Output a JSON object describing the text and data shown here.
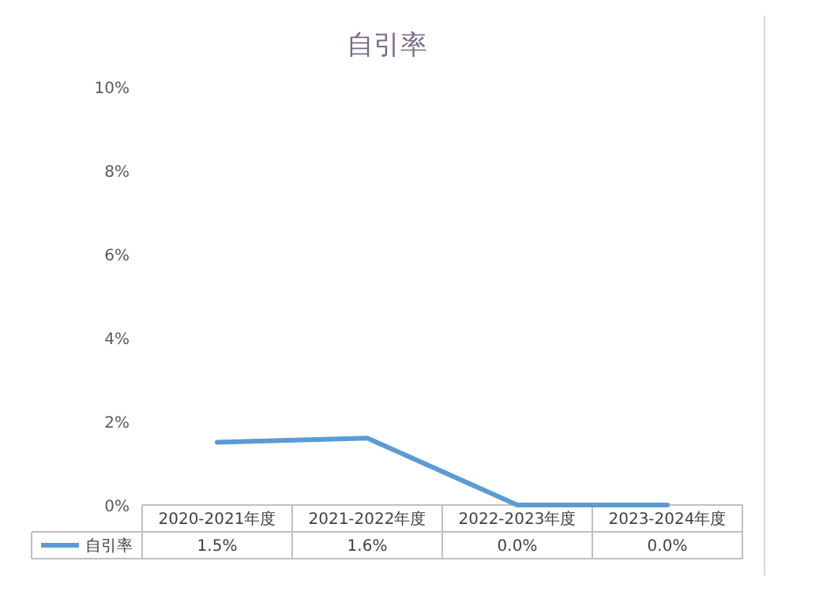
{
  "chart_data": {
    "type": "line",
    "title": "自引率",
    "categories": [
      "2020-2021年度",
      "2021-2022年度",
      "2022-2023年度",
      "2023-2024年度"
    ],
    "series": [
      {
        "name": "自引率",
        "color": "#5b9bd5",
        "values": [
          1.5,
          1.6,
          0.0,
          0.0
        ],
        "value_labels": [
          "1.5%",
          "1.6%",
          "0.0%",
          "0.0%"
        ]
      }
    ],
    "ylim": [
      0,
      10
    ],
    "yticks": [
      {
        "value": 0,
        "label": "0%"
      },
      {
        "value": 2,
        "label": "2%"
      },
      {
        "value": 4,
        "label": "4%"
      },
      {
        "value": 6,
        "label": "6%"
      },
      {
        "value": 8,
        "label": "8%"
      },
      {
        "value": 10,
        "label": "10%"
      }
    ],
    "legend": "bottom",
    "grid": false,
    "marker": "none",
    "line_style": "solid"
  }
}
